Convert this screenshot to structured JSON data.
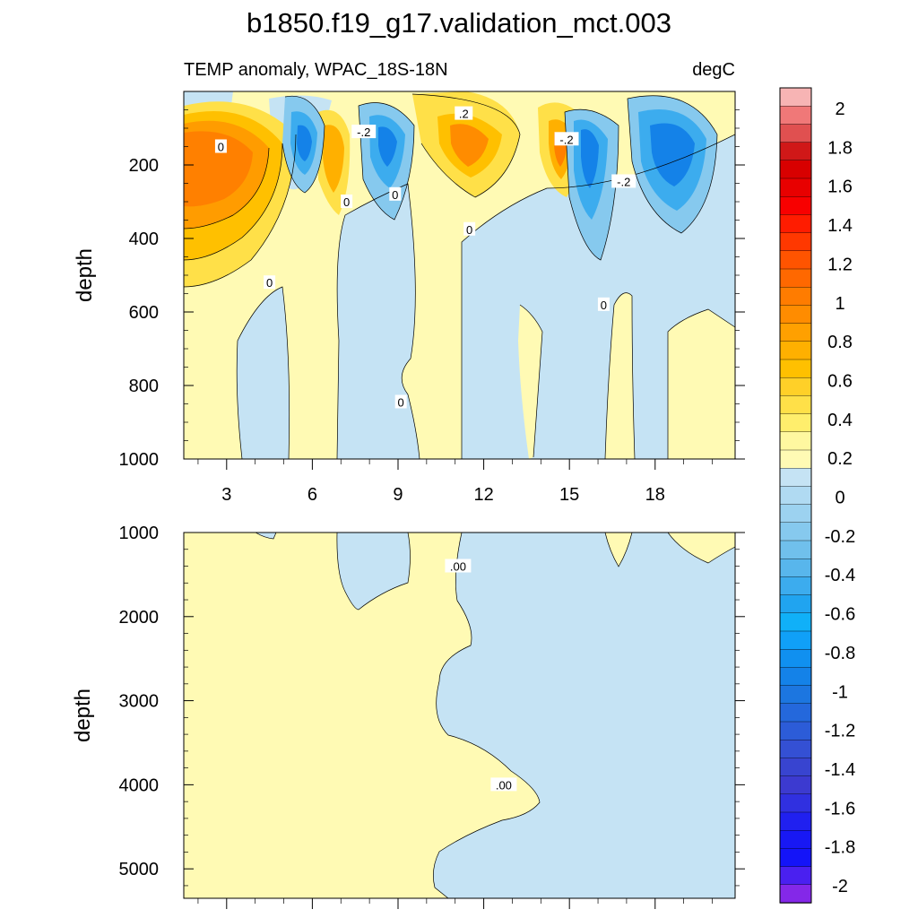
{
  "title": "b1850.f19_g17.validation_mct.003",
  "subtitle_left": "TEMP anomaly, WPAC_18S-18N",
  "subtitle_right": "degC",
  "colors": {
    "warm_weak": "#fffab4",
    "cool_weak": "#c5e3f4",
    "contour_line": "#000000"
  },
  "chart_data": [
    {
      "type": "heatmap",
      "panel": "upper",
      "ylabel": "depth",
      "y_reversed": true,
      "ylim": [
        1000,
        0
      ],
      "y_ticks": [
        200,
        400,
        600,
        800,
        1000
      ],
      "x_ticks": [
        3,
        6,
        9,
        12,
        15,
        18
      ],
      "xlim": [
        1.5,
        20.8
      ],
      "contour_labels": [
        {
          "text": "0",
          "x": 2.8,
          "y": 150
        },
        {
          "text": "0",
          "x": 4.5,
          "y": 520
        },
        {
          "text": "-.2",
          "x": 7.8,
          "y": 110
        },
        {
          "text": "0",
          "x": 7.2,
          "y": 300
        },
        {
          "text": "0",
          "x": 8.9,
          "y": 280
        },
        {
          "text": ".2",
          "x": 11.3,
          "y": 60
        },
        {
          "text": "0",
          "x": 11.5,
          "y": 375
        },
        {
          "text": "-.2",
          "x": 14.9,
          "y": 130
        },
        {
          "text": "-.2",
          "x": 16.9,
          "y": 245
        },
        {
          "text": "0",
          "x": 16.2,
          "y": 580
        },
        {
          "text": "0",
          "x": 9.1,
          "y": 845
        }
      ]
    },
    {
      "type": "heatmap",
      "panel": "lower",
      "ylabel": "depth",
      "y_reversed": true,
      "ylim": [
        5350,
        1000
      ],
      "y_ticks": [
        1000,
        2000,
        3000,
        4000,
        5000
      ],
      "contour_labels": [
        {
          "text": ".00",
          "x": 11.1,
          "y": 1400
        },
        {
          "text": ".00",
          "x": 12.7,
          "y": 4000
        }
      ]
    }
  ],
  "colorbar": {
    "labels": [
      "2",
      "1.8",
      "1.6",
      "1.4",
      "1.2",
      "1",
      "0.8",
      "0.6",
      "0.4",
      "0.2",
      "0",
      "-0.2",
      "-0.4",
      "-0.6",
      "-0.8",
      "-1",
      "-1.2",
      "-1.4",
      "-1.6",
      "-1.8",
      "-2"
    ],
    "colors": [
      "#f7b4b4",
      "#f07878",
      "#e05050",
      "#d01818",
      "#d80000",
      "#e80000",
      "#f80000",
      "#ff1c00",
      "#ff3800",
      "#ff5400",
      "#ff6800",
      "#ff7c00",
      "#ff8c00",
      "#ffa000",
      "#ffb000",
      "#ffc000",
      "#ffd028",
      "#ffe048",
      "#ffee6c",
      "#fff8a0",
      "#fffab4",
      "#c5e3f4",
      "#b0daf2",
      "#9cd2f0",
      "#86c9ee",
      "#70c0ec",
      "#58b6ec",
      "#3cacee",
      "#20a4f0",
      "#10b0f8",
      "#10a0f8",
      "#1090f0",
      "#1482e8",
      "#1c76e0",
      "#2468dc",
      "#2c5cd8",
      "#3450d4",
      "#3844d0",
      "#3c3ad0",
      "#3030e0",
      "#2020f0",
      "#1818f4",
      "#1414f8",
      "#4a20f0",
      "#8428e8"
    ]
  }
}
